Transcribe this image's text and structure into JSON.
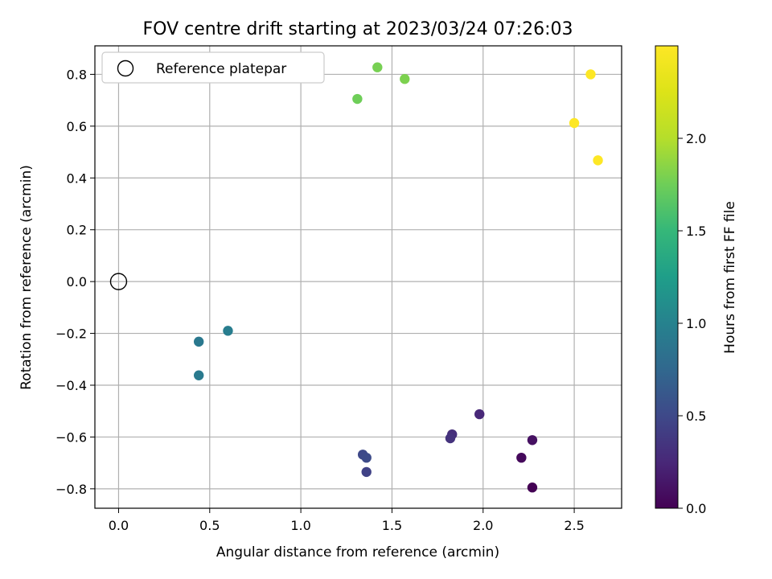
{
  "chart_data": {
    "type": "scatter",
    "title": "FOV centre drift starting at 2023/03/24 07:26:03",
    "xlabel": "Angular distance from reference (arcmin)",
    "ylabel": "Rotation from reference (arcmin)",
    "xlim": [
      -0.13,
      2.76
    ],
    "ylim": [
      -0.875,
      0.91
    ],
    "grid": true,
    "x_ticks": [
      0.0,
      0.5,
      1.0,
      1.5,
      2.0,
      2.5
    ],
    "x_tick_labels": [
      "0.0",
      "0.5",
      "1.0",
      "1.5",
      "2.0",
      "2.5"
    ],
    "y_ticks": [
      0.8,
      0.6,
      0.4,
      0.2,
      0.0,
      -0.2,
      -0.4,
      -0.6,
      -0.8
    ],
    "y_tick_labels": [
      "0.8",
      "0.6",
      "0.4",
      "0.2",
      "0.0",
      "−0.2",
      "−0.4",
      "−0.6",
      "−0.8"
    ],
    "legend": {
      "placement": "top-left",
      "entries": [
        {
          "label": "Reference platepar",
          "marker": "hollow-circle"
        }
      ]
    },
    "reference_point": {
      "x": 0.0,
      "y": 0.0
    },
    "colorbar": {
      "label": "Hours from first FF file",
      "colormap": "viridis",
      "range": [
        0.0,
        2.5
      ],
      "ticks": [
        0.0,
        0.5,
        1.0,
        1.5,
        2.0
      ],
      "tick_labels": [
        "0.0",
        "0.5",
        "1.0",
        "1.5",
        "2.0"
      ]
    },
    "points": [
      {
        "x": 2.27,
        "y": -0.795,
        "hours": 0.0
      },
      {
        "x": 2.21,
        "y": -0.68,
        "hours": 0.05
      },
      {
        "x": 2.27,
        "y": -0.612,
        "hours": 0.1
      },
      {
        "x": 1.98,
        "y": -0.512,
        "hours": 0.25
      },
      {
        "x": 1.83,
        "y": -0.59,
        "hours": 0.3
      },
      {
        "x": 1.82,
        "y": -0.605,
        "hours": 0.33
      },
      {
        "x": 1.36,
        "y": -0.735,
        "hours": 0.45
      },
      {
        "x": 1.34,
        "y": -0.668,
        "hours": 0.5
      },
      {
        "x": 1.36,
        "y": -0.68,
        "hours": 0.52
      },
      {
        "x": 0.44,
        "y": -0.232,
        "hours": 0.9
      },
      {
        "x": 0.44,
        "y": -0.362,
        "hours": 0.92
      },
      {
        "x": 0.6,
        "y": -0.19,
        "hours": 0.95
      },
      {
        "x": 1.31,
        "y": 0.705,
        "hours": 1.75
      },
      {
        "x": 1.42,
        "y": 0.827,
        "hours": 1.78
      },
      {
        "x": 1.57,
        "y": 0.782,
        "hours": 1.8
      },
      {
        "x": 2.5,
        "y": 0.612,
        "hours": 2.5
      },
      {
        "x": 2.59,
        "y": 0.8,
        "hours": 2.5
      },
      {
        "x": 2.63,
        "y": 0.468,
        "hours": 2.5
      }
    ]
  }
}
